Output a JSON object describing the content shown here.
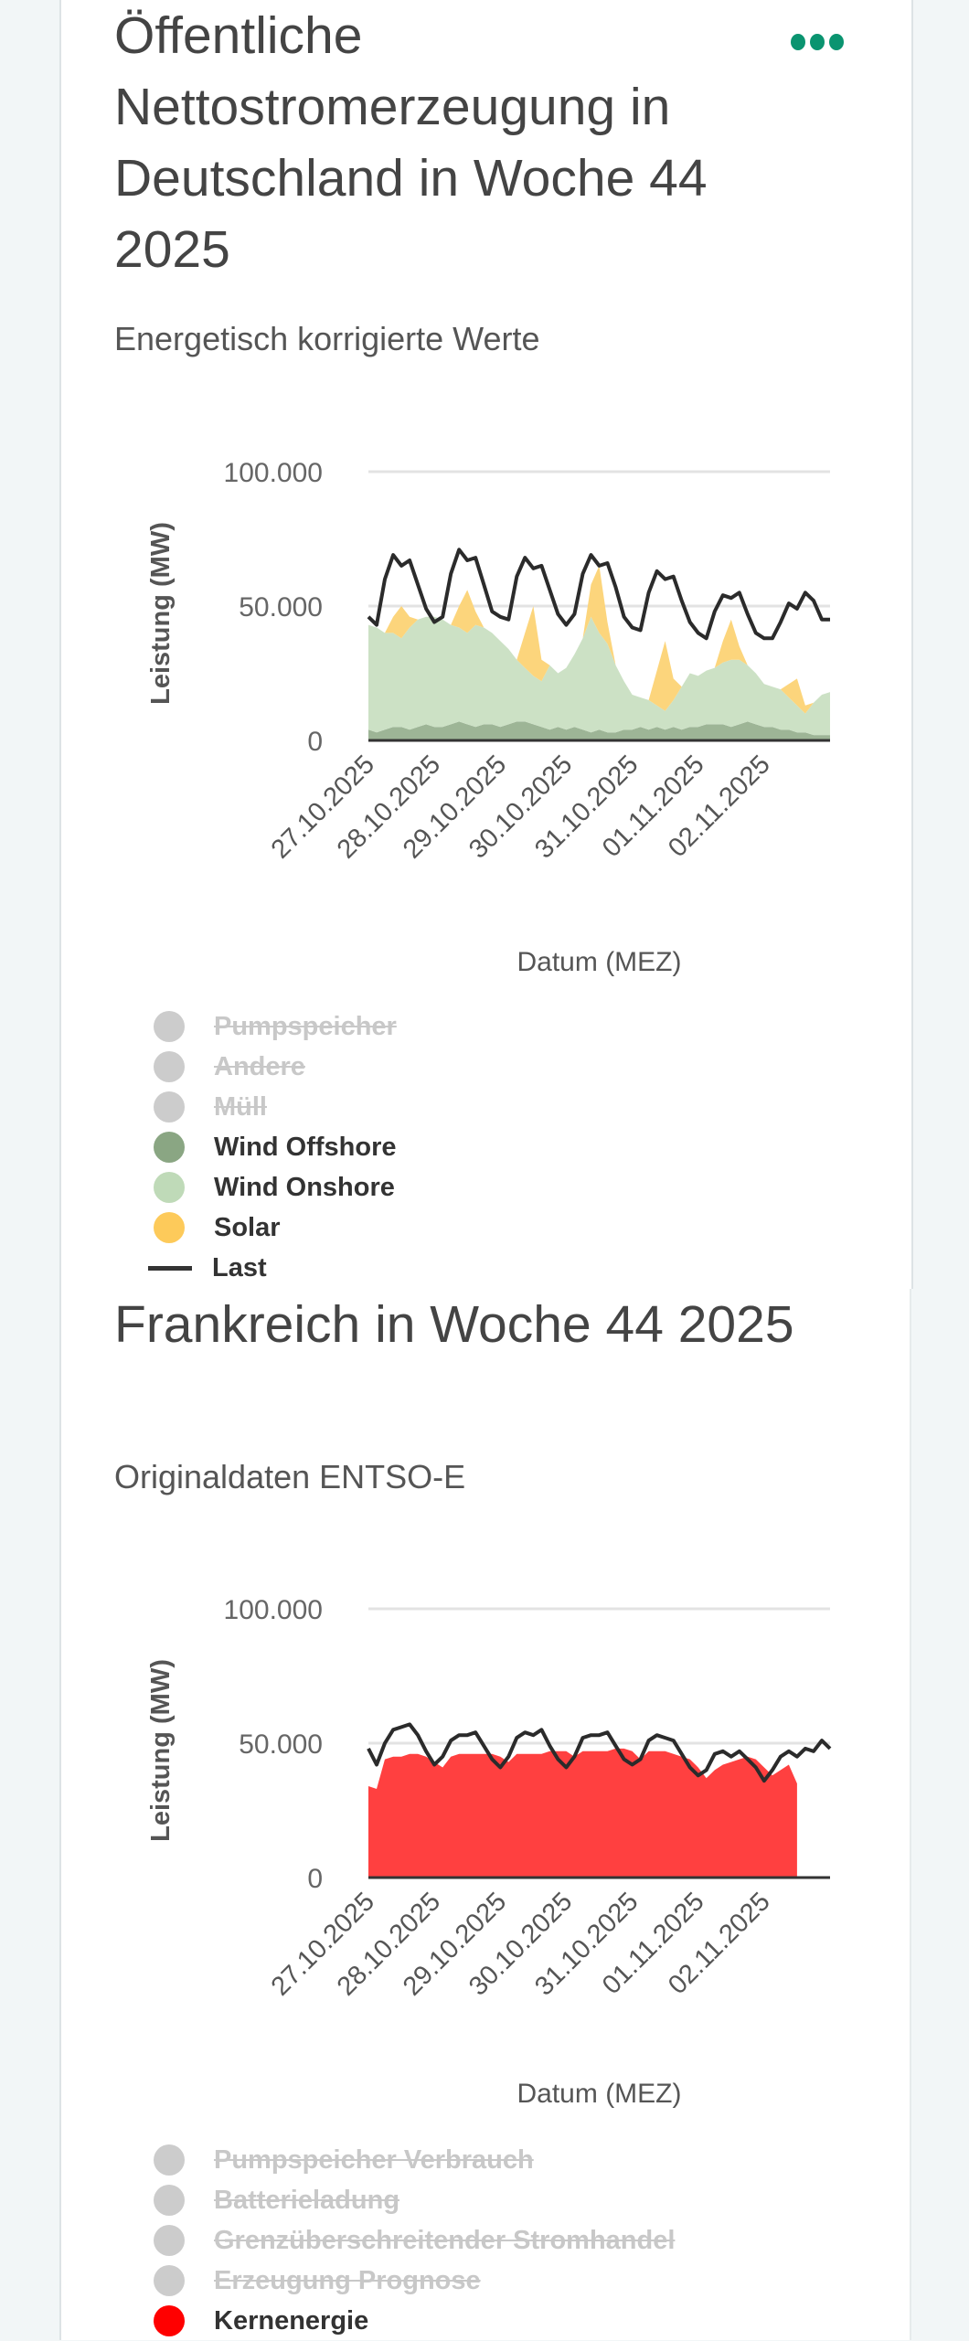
{
  "germany": {
    "title": "Öffentliche Nettostromerzeugung in Deutschland in Woche 44 2025",
    "subtitle": "Energetisch korrigierte Werte",
    "menu_icon": "more-horizontal-icon",
    "legend": [
      {
        "label": "Pumpspeicher",
        "color": "#cccccc",
        "enabled": false,
        "kind": "dot"
      },
      {
        "label": "Andere",
        "color": "#cccccc",
        "enabled": false,
        "kind": "dot"
      },
      {
        "label": "Müll",
        "color": "#cccccc",
        "enabled": false,
        "kind": "dot"
      },
      {
        "label": "Wind Offshore",
        "color": "#8aa683",
        "enabled": true,
        "kind": "dot"
      },
      {
        "label": "Wind Onshore",
        "color": "#bfdab8",
        "enabled": true,
        "kind": "dot"
      },
      {
        "label": "Solar",
        "color": "#fdca5a",
        "enabled": true,
        "kind": "dot"
      },
      {
        "label": "Last",
        "color": "#333333",
        "enabled": true,
        "kind": "line"
      }
    ]
  },
  "france": {
    "title": "Frankreich in Woche 44 2025",
    "subtitle": "Originaldaten ENTSO-E",
    "legend": [
      {
        "label": "Pumpspeicher Verbrauch",
        "color": "#cccccc",
        "enabled": false,
        "kind": "dot"
      },
      {
        "label": "Batterieladung",
        "color": "#cccccc",
        "enabled": false,
        "kind": "dot"
      },
      {
        "label": "Grenzüberschreitender Stromhandel",
        "color": "#cccccc",
        "enabled": false,
        "kind": "dot"
      },
      {
        "label": "Erzeugung Prognose",
        "color": "#cccccc",
        "enabled": false,
        "kind": "dot"
      },
      {
        "label": "Kernenergie",
        "color": "#ff0000",
        "enabled": true,
        "kind": "dot"
      }
    ]
  },
  "chart_data": [
    {
      "type": "area",
      "stacked": true,
      "xlabel": "Datum (MEZ)",
      "ylabel": "Leistung (MW)",
      "ylim": [
        0,
        100000
      ],
      "yticks": [
        "0",
        "50.000",
        "100.000"
      ],
      "ytick_values": [
        0,
        50000,
        100000
      ],
      "xticks": [
        "27.10.2025",
        "28.10.2025",
        "29.10.2025",
        "30.10.2025",
        "31.10.2025",
        "01.11.2025",
        "02.11.2025"
      ],
      "x_step_hours": 3,
      "grid": true,
      "unit_scale": "values in thousand MW (GW)",
      "series": [
        {
          "name": "Wind Offshore",
          "color": "#9db596",
          "values": [
            4,
            3,
            4,
            5,
            5,
            4,
            5,
            6,
            5,
            5,
            6,
            7,
            6,
            5,
            6,
            6,
            5,
            6,
            7,
            7,
            6,
            5,
            4,
            5,
            4,
            5,
            4,
            3,
            4,
            3,
            3,
            4,
            4,
            5,
            4,
            5,
            4,
            5,
            4,
            5,
            5,
            6,
            6,
            6,
            5,
            6,
            7,
            6,
            5,
            5,
            4,
            4,
            3,
            3,
            2,
            2,
            2
          ]
        },
        {
          "name": "Wind Onshore",
          "color": "#cce1c5",
          "values": [
            39,
            39,
            36,
            35,
            33,
            38,
            40,
            40,
            41,
            40,
            37,
            35,
            34,
            38,
            36,
            34,
            32,
            28,
            23,
            20,
            18,
            17,
            24,
            20,
            23,
            27,
            34,
            43,
            36,
            33,
            25,
            18,
            13,
            11,
            11,
            8,
            7,
            10,
            16,
            20,
            19,
            20,
            21,
            23,
            25,
            24,
            21,
            19,
            16,
            15,
            15,
            12,
            10,
            7,
            12,
            15,
            16
          ]
        },
        {
          "name": "Solar",
          "color": "#fcd57c",
          "values": [
            0,
            0,
            0,
            6,
            12,
            4,
            0,
            0,
            0,
            0,
            0,
            8,
            16,
            5,
            0,
            0,
            0,
            0,
            0,
            13,
            26,
            8,
            0,
            0,
            0,
            0,
            0,
            12,
            25,
            8,
            0,
            0,
            0,
            0,
            0,
            13,
            26,
            8,
            0,
            0,
            0,
            0,
            0,
            8,
            15,
            5,
            0,
            0,
            0,
            0,
            0,
            5,
            10,
            3,
            0,
            0,
            0
          ]
        },
        {
          "name": "Last",
          "type": "line",
          "color": "#2b2b2b",
          "values": [
            46,
            43,
            60,
            69,
            65,
            67,
            58,
            49,
            44,
            46,
            62,
            71,
            67,
            68,
            58,
            48,
            46,
            45,
            61,
            68,
            64,
            65,
            56,
            47,
            43,
            47,
            62,
            69,
            65,
            66,
            57,
            46,
            42,
            41,
            55,
            63,
            60,
            61,
            52,
            44,
            40,
            38,
            48,
            54,
            53,
            55,
            47,
            40,
            38,
            38,
            44,
            51,
            49,
            55,
            52,
            45,
            45
          ]
        }
      ]
    },
    {
      "type": "area",
      "stacked": true,
      "xlabel": "Datum (MEZ)",
      "ylabel": "Leistung (MW)",
      "ylim": [
        0,
        100000
      ],
      "yticks": [
        "0",
        "50.000",
        "100.000"
      ],
      "ytick_values": [
        0,
        50000,
        100000
      ],
      "xticks": [
        "27.10.2025",
        "28.10.2025",
        "29.10.2025",
        "30.10.2025",
        "31.10.2025",
        "01.11.2025",
        "02.11.2025"
      ],
      "x_step_hours": 3,
      "grid": true,
      "unit_scale": "values in thousand MW (GW)",
      "series": [
        {
          "name": "Kernenergie",
          "color": "#ff4040",
          "values": [
            34,
            33,
            44,
            45,
            45,
            46,
            46,
            45,
            43,
            41,
            45,
            46,
            46,
            46,
            46,
            46,
            45,
            43,
            46,
            46,
            46,
            46,
            47,
            47,
            47,
            45,
            47,
            47,
            47,
            47,
            48,
            48,
            47,
            44,
            47,
            47,
            47,
            46,
            45,
            44,
            41,
            37,
            40,
            42,
            43,
            44,
            45,
            44,
            41,
            38,
            40,
            42,
            35,
            null,
            null,
            null,
            null
          ]
        },
        {
          "name": "Last",
          "type": "line",
          "color": "#2b2b2b",
          "values": [
            48,
            42,
            50,
            55,
            56,
            57,
            53,
            47,
            42,
            45,
            51,
            53,
            53,
            54,
            49,
            44,
            41,
            45,
            52,
            54,
            53,
            55,
            49,
            44,
            41,
            45,
            52,
            53,
            53,
            54,
            49,
            44,
            42,
            44,
            51,
            53,
            52,
            51,
            46,
            41,
            38,
            40,
            46,
            47,
            45,
            47,
            44,
            41,
            36,
            40,
            45,
            47,
            45,
            48,
            47,
            51,
            48
          ]
        }
      ]
    }
  ]
}
